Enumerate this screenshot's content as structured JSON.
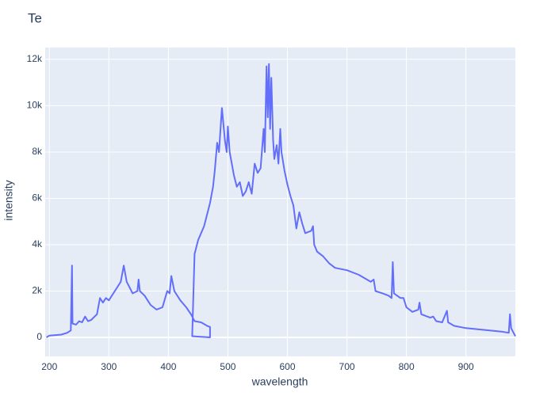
{
  "chart_data": {
    "type": "line",
    "title": "Te",
    "x_label": "wavelength",
    "y_label": "intensity",
    "xlim": [
      193,
      983
    ],
    "ylim": [
      -820,
      12510
    ],
    "xticks": [
      200,
      300,
      400,
      500,
      600,
      700,
      800,
      900
    ],
    "yticks": [
      0,
      {
        "value": 2000,
        "label": "2k"
      },
      {
        "value": 4000,
        "label": "4k"
      },
      {
        "value": 6000,
        "label": "6k"
      },
      {
        "value": 8000,
        "label": "8k"
      },
      {
        "value": 10000,
        "label": "10k"
      },
      {
        "value": 12000,
        "label": "12k"
      }
    ],
    "grid": true,
    "background": "#e5ecf6",
    "x": [
      195,
      200,
      210,
      220,
      230,
      236,
      238,
      239,
      245,
      250,
      255,
      260,
      265,
      270,
      280,
      285,
      290,
      295,
      300,
      310,
      320,
      325,
      330,
      340,
      348,
      350,
      352,
      360,
      370,
      380,
      390,
      398,
      402,
      405,
      410,
      420,
      430,
      438,
      442,
      444,
      455,
      465,
      470,
      470,
      440,
      444,
      450,
      460,
      470,
      475,
      478,
      482,
      485,
      490,
      495,
      498,
      500,
      503,
      510,
      515,
      520,
      525,
      530,
      535,
      540,
      545,
      550,
      555,
      560,
      562,
      565,
      567,
      569,
      571,
      573,
      576,
      578,
      582,
      585,
      588,
      590,
      595,
      600,
      605,
      610,
      615,
      620,
      625,
      630,
      640,
      643,
      645,
      650,
      660,
      670,
      680,
      700,
      720,
      740,
      745,
      748,
      760,
      770,
      775,
      777,
      779,
      790,
      795,
      800,
      810,
      820,
      822,
      825,
      840,
      845,
      850,
      860,
      868,
      870,
      880,
      900,
      920,
      940,
      960,
      972,
      974,
      976,
      980,
      983
    ],
    "series": [
      {
        "name": "intensity",
        "color": "#636efa",
        "values": [
          0,
          80,
          100,
          120,
          200,
          300,
          3100,
          600,
          550,
          700,
          650,
          900,
          700,
          750,
          1000,
          1700,
          1500,
          1700,
          1600,
          2000,
          2400,
          3100,
          2400,
          1900,
          2000,
          2500,
          2000,
          1800,
          1400,
          1200,
          1300,
          2000,
          1900,
          2650,
          2000,
          1600,
          1300,
          1000,
          800,
          700,
          650,
          500,
          450,
          0,
          50,
          3600,
          4200,
          4800,
          5800,
          6500,
          7200,
          8400,
          8000,
          9900,
          8500,
          8000,
          9100,
          8000,
          7000,
          6500,
          6700,
          6100,
          6300,
          6700,
          6200,
          7500,
          7100,
          7300,
          9000,
          8000,
          11700,
          9500,
          11800,
          9000,
          11200,
          8500,
          7700,
          8300,
          7500,
          9000,
          8000,
          7200,
          6600,
          6100,
          5700,
          4700,
          5400,
          4900,
          4500,
          4600,
          4800,
          4000,
          3700,
          3500,
          3200,
          3000,
          2900,
          2700,
          2400,
          2500,
          2000,
          1900,
          1800,
          1700,
          3250,
          1900,
          1700,
          1700,
          1300,
          1100,
          1200,
          1500,
          1000,
          850,
          900,
          700,
          650,
          1150,
          650,
          500,
          400,
          350,
          300,
          250,
          200,
          1000,
          400,
          200,
          50
        ]
      }
    ]
  }
}
